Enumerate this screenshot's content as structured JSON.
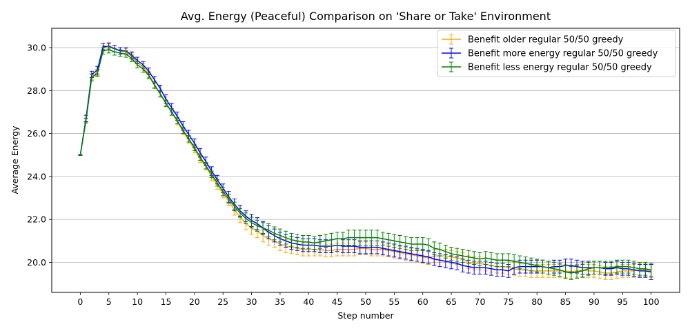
{
  "chart_data": {
    "type": "line",
    "title": "Avg. Energy (Peaceful) Comparison on 'Share or Take' Environment",
    "xlabel": "Step number",
    "ylabel": "Average Energy",
    "xlim": [
      -5,
      105
    ],
    "ylim": [
      18.6,
      30.9
    ],
    "xticks": [
      0,
      5,
      10,
      15,
      20,
      25,
      30,
      35,
      40,
      45,
      50,
      55,
      60,
      65,
      70,
      75,
      80,
      85,
      90,
      95,
      100
    ],
    "yticks": [
      20.0,
      22.0,
      24.0,
      26.0,
      28.0,
      30.0
    ],
    "ytick_labels": [
      "20.0",
      "22.0",
      "24.0",
      "26.0",
      "28.0",
      "30.0"
    ],
    "grid": "horizontal",
    "legend_position": "top-right",
    "error_bars": true,
    "series": [
      {
        "name": "Benefit older regular 50/50 greedy",
        "color": "#ffa500",
        "values": [
          25.0,
          26.6,
          28.65,
          28.85,
          29.95,
          30.1,
          29.95,
          29.85,
          29.8,
          29.6,
          29.3,
          29.1,
          28.75,
          28.3,
          27.85,
          27.45,
          27.0,
          26.55,
          26.1,
          25.7,
          25.25,
          24.8,
          24.45,
          24.0,
          23.6,
          23.2,
          22.85,
          22.45,
          22.1,
          21.8,
          21.6,
          21.45,
          21.25,
          21.1,
          21.0,
          20.85,
          20.75,
          20.7,
          20.65,
          20.6,
          20.6,
          20.6,
          20.6,
          20.55,
          20.55,
          20.6,
          20.6,
          20.6,
          20.6,
          20.65,
          20.65,
          20.6,
          20.6,
          20.6,
          20.55,
          20.5,
          20.45,
          20.4,
          20.35,
          20.3,
          20.25,
          20.2,
          20.3,
          20.3,
          20.3,
          20.25,
          20.2,
          20.15,
          20.0,
          19.95,
          19.95,
          19.9,
          19.85,
          19.8,
          19.8,
          19.75,
          19.7,
          19.65,
          19.65,
          19.6,
          19.6,
          19.6,
          19.6,
          19.6,
          19.6,
          19.6,
          19.55,
          19.6,
          19.65,
          19.6,
          19.6,
          19.55,
          19.5,
          19.5,
          19.55,
          19.6,
          19.6,
          19.6,
          19.65,
          19.65,
          19.6
        ],
        "errors": [
          0.02,
          0.12,
          0.15,
          0.15,
          0.15,
          0.15,
          0.15,
          0.15,
          0.15,
          0.15,
          0.15,
          0.15,
          0.15,
          0.15,
          0.15,
          0.15,
          0.15,
          0.15,
          0.15,
          0.15,
          0.15,
          0.15,
          0.15,
          0.2,
          0.2,
          0.2,
          0.22,
          0.25,
          0.25,
          0.28,
          0.3,
          0.3,
          0.3,
          0.3,
          0.3,
          0.3,
          0.3,
          0.3,
          0.3,
          0.3,
          0.3,
          0.3,
          0.3,
          0.3,
          0.3,
          0.3,
          0.3,
          0.3,
          0.3,
          0.3,
          0.3,
          0.3,
          0.3,
          0.3,
          0.3,
          0.3,
          0.3,
          0.3,
          0.3,
          0.3,
          0.3,
          0.3,
          0.3,
          0.3,
          0.3,
          0.3,
          0.3,
          0.3,
          0.3,
          0.3,
          0.3,
          0.3,
          0.3,
          0.3,
          0.3,
          0.3,
          0.3,
          0.3,
          0.3,
          0.3,
          0.3,
          0.3,
          0.3,
          0.3,
          0.3,
          0.3,
          0.3,
          0.3,
          0.3,
          0.3,
          0.3,
          0.3,
          0.3,
          0.3,
          0.3,
          0.3,
          0.3,
          0.3,
          0.3,
          0.3,
          0.3
        ]
      },
      {
        "name": "Benefit more energy regular 50/50 greedy",
        "color": "#0000ff",
        "values": [
          25.0,
          26.7,
          28.75,
          28.95,
          30.05,
          30.05,
          29.95,
          29.85,
          29.85,
          29.65,
          29.4,
          29.2,
          28.9,
          28.5,
          28.1,
          27.6,
          27.2,
          26.8,
          26.35,
          25.95,
          25.55,
          25.1,
          24.7,
          24.25,
          23.85,
          23.45,
          23.05,
          22.7,
          22.4,
          22.15,
          21.95,
          21.8,
          21.6,
          21.4,
          21.25,
          21.1,
          21.0,
          20.9,
          20.85,
          20.8,
          20.8,
          20.8,
          20.75,
          20.75,
          20.75,
          20.8,
          20.75,
          20.75,
          20.75,
          20.7,
          20.7,
          20.7,
          20.7,
          20.65,
          20.6,
          20.55,
          20.5,
          20.45,
          20.4,
          20.35,
          20.3,
          20.25,
          20.15,
          20.1,
          20.05,
          20.0,
          19.95,
          19.85,
          19.8,
          19.75,
          19.75,
          19.75,
          19.7,
          19.65,
          19.65,
          19.6,
          19.75,
          19.8,
          19.8,
          19.8,
          19.8,
          19.8,
          19.75,
          19.8,
          19.8,
          19.85,
          19.85,
          19.8,
          19.75,
          19.75,
          19.75,
          19.75,
          19.7,
          19.7,
          19.75,
          19.7,
          19.7,
          19.65,
          19.6,
          19.6,
          19.55
        ],
        "errors": [
          0.02,
          0.15,
          0.15,
          0.18,
          0.15,
          0.15,
          0.15,
          0.15,
          0.15,
          0.15,
          0.15,
          0.15,
          0.15,
          0.15,
          0.15,
          0.2,
          0.2,
          0.2,
          0.2,
          0.2,
          0.2,
          0.2,
          0.2,
          0.2,
          0.2,
          0.2,
          0.25,
          0.25,
          0.25,
          0.25,
          0.28,
          0.28,
          0.3,
          0.3,
          0.3,
          0.3,
          0.3,
          0.3,
          0.3,
          0.3,
          0.3,
          0.3,
          0.3,
          0.3,
          0.3,
          0.3,
          0.3,
          0.3,
          0.3,
          0.3,
          0.3,
          0.3,
          0.3,
          0.3,
          0.3,
          0.3,
          0.3,
          0.3,
          0.3,
          0.3,
          0.3,
          0.3,
          0.3,
          0.3,
          0.3,
          0.3,
          0.3,
          0.3,
          0.3,
          0.3,
          0.3,
          0.3,
          0.3,
          0.3,
          0.3,
          0.3,
          0.3,
          0.3,
          0.3,
          0.3,
          0.3,
          0.3,
          0.3,
          0.3,
          0.3,
          0.3,
          0.3,
          0.3,
          0.3,
          0.3,
          0.3,
          0.3,
          0.3,
          0.3,
          0.3,
          0.3,
          0.3,
          0.3,
          0.3,
          0.3,
          0.35
        ]
      },
      {
        "name": "Benefit less energy regular 50/50 greedy",
        "color": "#008000",
        "values": [
          25.0,
          26.6,
          28.6,
          28.8,
          29.85,
          29.9,
          29.8,
          29.75,
          29.7,
          29.5,
          29.2,
          29.0,
          28.7,
          28.25,
          27.85,
          27.4,
          27.0,
          26.6,
          26.15,
          25.75,
          25.35,
          24.9,
          24.5,
          24.1,
          23.7,
          23.3,
          22.95,
          22.6,
          22.3,
          22.05,
          21.85,
          21.7,
          21.6,
          21.5,
          21.35,
          21.25,
          21.15,
          21.05,
          21.0,
          20.95,
          20.95,
          20.9,
          20.95,
          21.0,
          21.05,
          21.1,
          21.1,
          21.15,
          21.15,
          21.15,
          21.15,
          21.15,
          21.15,
          21.1,
          21.05,
          21.0,
          20.95,
          20.9,
          20.85,
          20.85,
          20.85,
          20.8,
          20.65,
          20.6,
          20.5,
          20.4,
          20.35,
          20.3,
          20.25,
          20.2,
          20.15,
          20.2,
          20.15,
          20.1,
          20.1,
          20.1,
          20.05,
          20.0,
          19.95,
          19.9,
          19.85,
          19.8,
          19.75,
          19.7,
          19.65,
          19.55,
          19.5,
          19.55,
          19.6,
          19.7,
          19.75,
          19.75,
          19.75,
          19.75,
          19.8,
          19.8,
          19.8,
          19.75,
          19.7,
          19.7,
          19.65
        ],
        "errors": [
          0.02,
          0.1,
          0.15,
          0.15,
          0.15,
          0.15,
          0.15,
          0.15,
          0.15,
          0.15,
          0.15,
          0.15,
          0.15,
          0.15,
          0.15,
          0.15,
          0.15,
          0.15,
          0.15,
          0.15,
          0.15,
          0.15,
          0.15,
          0.15,
          0.15,
          0.2,
          0.2,
          0.2,
          0.2,
          0.25,
          0.25,
          0.25,
          0.25,
          0.3,
          0.3,
          0.3,
          0.3,
          0.3,
          0.3,
          0.3,
          0.3,
          0.3,
          0.3,
          0.3,
          0.3,
          0.3,
          0.3,
          0.35,
          0.35,
          0.35,
          0.35,
          0.35,
          0.35,
          0.3,
          0.3,
          0.3,
          0.3,
          0.3,
          0.3,
          0.3,
          0.3,
          0.3,
          0.3,
          0.3,
          0.3,
          0.3,
          0.3,
          0.3,
          0.3,
          0.3,
          0.3,
          0.3,
          0.3,
          0.3,
          0.3,
          0.3,
          0.3,
          0.3,
          0.3,
          0.3,
          0.3,
          0.3,
          0.3,
          0.3,
          0.3,
          0.3,
          0.3,
          0.3,
          0.3,
          0.3,
          0.3,
          0.3,
          0.3,
          0.3,
          0.3,
          0.3,
          0.3,
          0.3,
          0.3,
          0.3,
          0.3
        ]
      }
    ]
  }
}
